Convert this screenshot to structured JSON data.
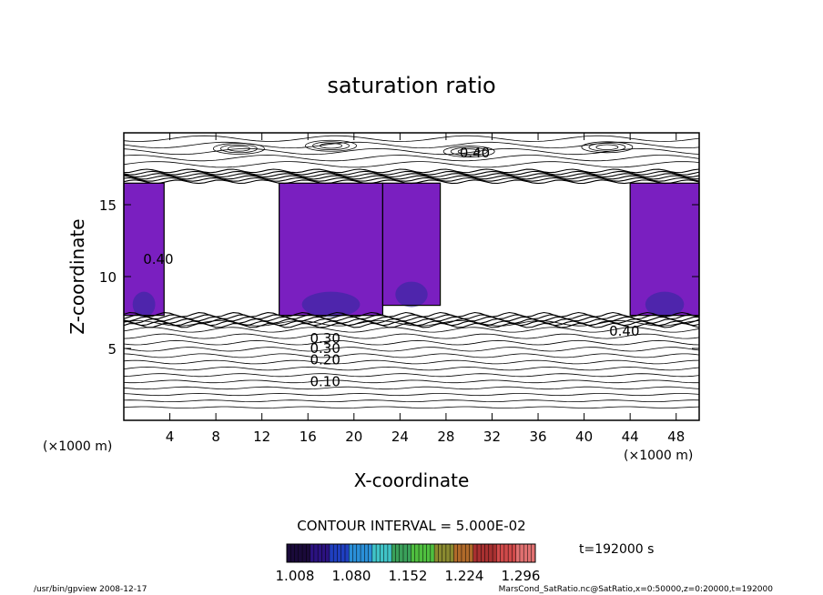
{
  "chart_data": {
    "type": "contour",
    "title": "saturation ratio",
    "xlabel": "X-coordinate",
    "ylabel": "Z-coordinate",
    "x_units_left": "(×1000 m)",
    "x_units_right": "(×1000 m)",
    "xlim": [
      0,
      50
    ],
    "ylim": [
      0,
      20
    ],
    "xticks": [
      4,
      8,
      12,
      16,
      20,
      24,
      28,
      32,
      36,
      40,
      44,
      48
    ],
    "yticks": [
      5,
      10,
      15
    ],
    "contour_interval_text": "CONTOUR INTERVAL = 5.000E-02",
    "contour_labels": [
      {
        "text": "0.10",
        "x": 17.5,
        "z": 2.7
      },
      {
        "text": "0.20",
        "x": 17.5,
        "z": 4.2
      },
      {
        "text": "0.30",
        "x": 17.5,
        "z": 5.0
      },
      {
        "text": "0.30",
        "x": 17.5,
        "z": 5.7
      },
      {
        "text": "0.40",
        "x": 30.5,
        "z": 18.6
      },
      {
        "text": "0.40",
        "x": 43.5,
        "z": 6.2
      },
      {
        "text": "0.40",
        "x": 3.0,
        "z": 11.2
      }
    ],
    "shaded_regions": [
      {
        "x": [
          0,
          3.5
        ],
        "z": [
          7.3,
          16.5
        ]
      },
      {
        "x": [
          13.5,
          22.5
        ],
        "z": [
          7.3,
          16.5
        ]
      },
      {
        "x": [
          22.5,
          27.5
        ],
        "z": [
          8.0,
          16.5
        ]
      },
      {
        "x": [
          44.0,
          50
        ],
        "z": [
          7.3,
          16.5
        ]
      }
    ],
    "colorbar": {
      "ticks": [
        "1.008",
        "1.080",
        "1.152",
        "1.224",
        "1.296"
      ],
      "colors": [
        "#1a0a3a",
        "#2b1280",
        "#1f3fc0",
        "#2a8fd8",
        "#40c4c8",
        "#3aa05a",
        "#4fbf3f",
        "#8a8a30",
        "#b06a2a",
        "#a83030",
        "#d04a4a",
        "#e07070"
      ]
    },
    "time_label": "t=192000 s",
    "fill_color": "#7a1fc0",
    "fill_color_core": "#2a2a9a"
  },
  "footer": {
    "left": "/usr/bin/gpview   2008-12-17",
    "right": "MarsCond_SatRatio.nc@SatRatio,x=0:50000,z=0:20000,t=192000"
  }
}
